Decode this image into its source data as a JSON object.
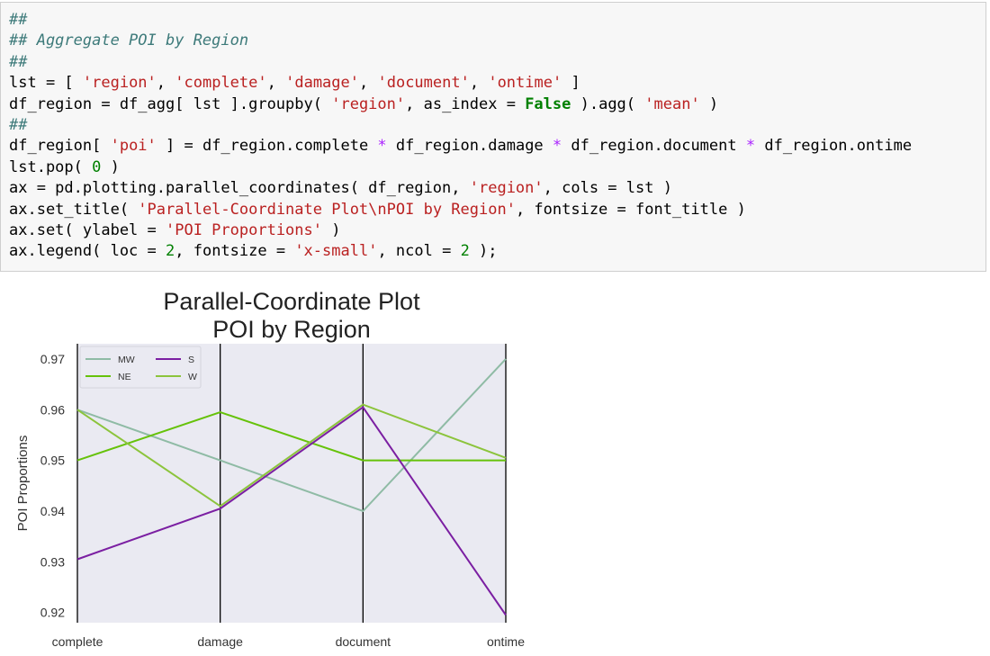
{
  "code": {
    "comment_hashes": "##",
    "comment_title": "## Aggregate POI by Region",
    "line_lst_prefix": "lst = [ ",
    "cols": [
      "'region'",
      "'complete'",
      "'damage'",
      "'document'",
      "'ontime'"
    ],
    "line_lst_suffix": " ]",
    "groupby_a": "df_region = df_agg[ lst ].groupby( ",
    "groupby_region": "'region'",
    "groupby_b": ", as_index = ",
    "groupby_false": "False",
    "groupby_c": " ).agg( ",
    "groupby_mean": "'mean'",
    "groupby_d": " )",
    "poi_a": "df_region[ ",
    "poi_key": "'poi'",
    "poi_b": " ] = df_region.complete ",
    "poi_c": " df_region.damage ",
    "poi_d": " df_region.document ",
    "poi_e": " df_region.ontime",
    "pop_a": "lst.pop( ",
    "pop_num": "0",
    "pop_b": " )",
    "pc_a": "ax = pd.plotting.parallel_coordinates( df_region, ",
    "pc_region": "'region'",
    "pc_b": ", cols = lst )",
    "title_a": "ax.set_title( ",
    "title_str": "'Parallel-Coordinate Plot\\nPOI by Region'",
    "title_b": ", fontsize = font_title )",
    "ylabel_a": "ax.set( ylabel = ",
    "ylabel_str": "'POI Proportions'",
    "ylabel_b": " )",
    "legend_a": "ax.legend( loc = ",
    "legend_loc": "2",
    "legend_b": ", fontsize = ",
    "legend_fs": "'x-small'",
    "legend_c": ", ncol = ",
    "legend_ncol": "2",
    "legend_d": " );",
    "op_eq": "=",
    "op_mul": "*"
  },
  "chart_data": {
    "type": "line",
    "title": "Parallel-Coordinate Plot\nPOI by Region",
    "title_lines": [
      "Parallel-Coordinate Plot",
      "POI by Region"
    ],
    "ylabel": "POI Proportions",
    "xlabel": "",
    "categories": [
      "complete",
      "damage",
      "document",
      "ontime"
    ],
    "ylim": [
      0.918,
      0.973
    ],
    "yticks": [
      0.92,
      0.93,
      0.94,
      0.95,
      0.96,
      0.97
    ],
    "ytick_labels": [
      "0.92",
      "0.93",
      "0.94",
      "0.95",
      "0.96",
      "0.97"
    ],
    "legend_position": "top-left",
    "grid": false,
    "background": "#eaeaf2",
    "series": [
      {
        "name": "MW",
        "color": "#8fbba5",
        "values": [
          0.96,
          0.95,
          0.94,
          0.97
        ]
      },
      {
        "name": "NE",
        "color": "#66c20a",
        "values": [
          0.95,
          0.9595,
          0.95,
          0.95
        ]
      },
      {
        "name": "S",
        "color": "#7b1fa2",
        "values": [
          0.9305,
          0.9405,
          0.9605,
          0.9195
        ]
      },
      {
        "name": "W",
        "color": "#8cc43c",
        "values": [
          0.96,
          0.941,
          0.961,
          0.9505
        ]
      }
    ]
  }
}
